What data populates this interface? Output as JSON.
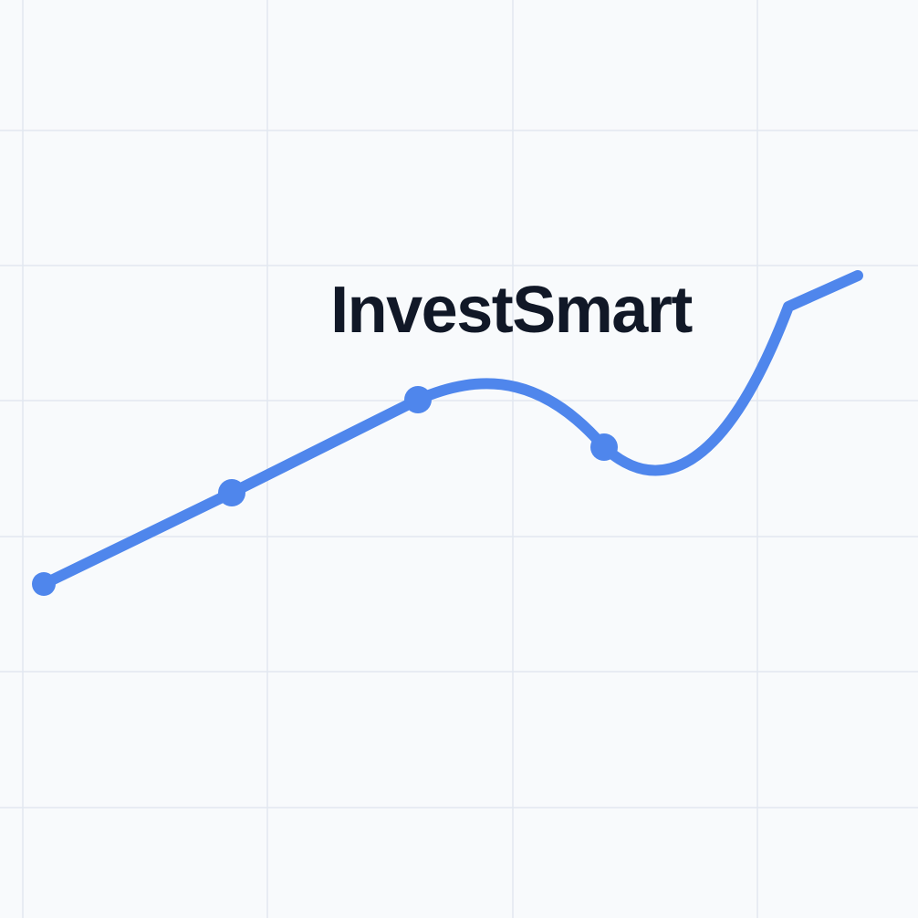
{
  "brand": {
    "name": "InvestSmart"
  },
  "colors": {
    "background": "#f8fafc",
    "grid": "#e2e8f0",
    "line": "#4f86ec",
    "text": "#111827"
  },
  "graphic": {
    "type": "decorative-upward-trend-line",
    "marker_count": 4
  }
}
